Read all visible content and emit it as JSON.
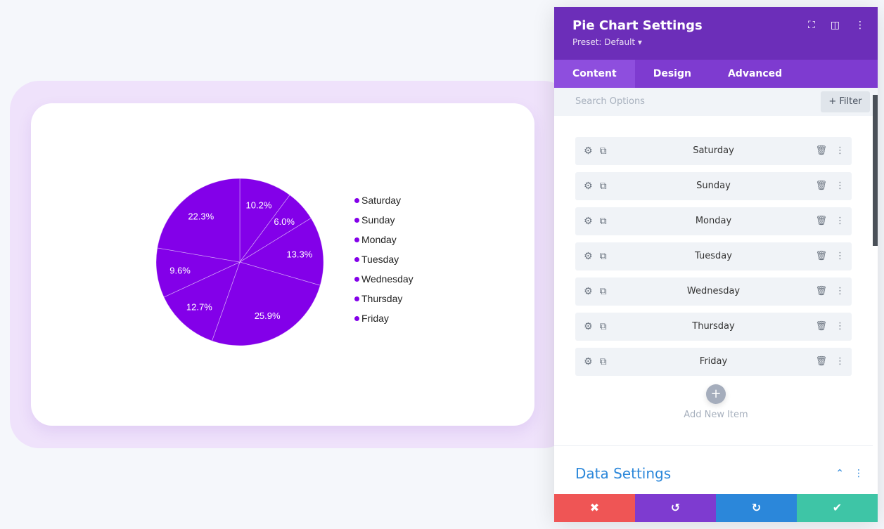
{
  "panel": {
    "title": "Pie Chart Settings",
    "preset": "Preset: Default ▾",
    "tabs": [
      "Content",
      "Design",
      "Advanced"
    ],
    "search_placeholder": "Search Options",
    "filter_label": "+ Filter",
    "items": [
      "Saturday",
      "Sunday",
      "Monday",
      "Tuesday",
      "Wednesday",
      "Thursday",
      "Friday"
    ],
    "add_label": "Add New Item",
    "section_title": "Data Settings"
  },
  "colors": {
    "slice": "#8300e9",
    "header": "#6c2eb9",
    "tabs": "#7e3bd0",
    "cancel": "#ef5555",
    "undo": "#7e3bd0",
    "redo": "#2b87da",
    "save": "#3ec5a6"
  },
  "chart_data": {
    "type": "pie",
    "categories": [
      "Saturday",
      "Sunday",
      "Monday",
      "Tuesday",
      "Wednesday",
      "Thursday",
      "Friday"
    ],
    "values": [
      10.2,
      6.0,
      13.3,
      25.9,
      12.7,
      9.6,
      22.3
    ],
    "labels": [
      "10.2%",
      "6.0%",
      "13.3%",
      "25.9%",
      "12.7%",
      "9.6%",
      "22.3%"
    ],
    "legend": "right",
    "start": "top",
    "direction": "clockwise"
  }
}
